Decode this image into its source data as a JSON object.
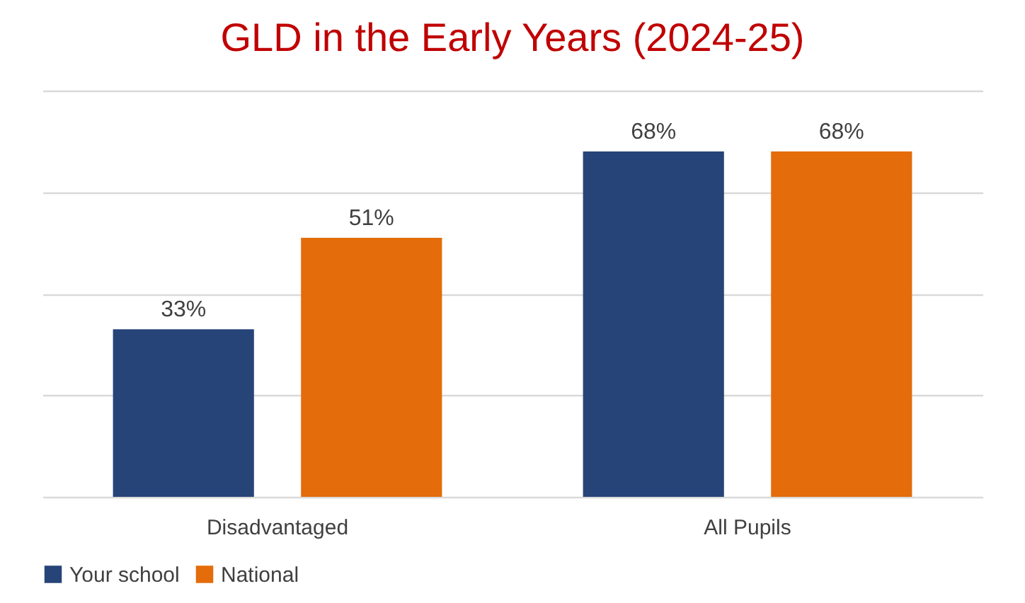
{
  "chart_data": {
    "type": "bar",
    "title": "GLD in the Early Years (2024-25)",
    "categories": [
      "Disadvantaged",
      "All Pupils"
    ],
    "series": [
      {
        "name": "Your school",
        "color": "#264478",
        "values": [
          33,
          68
        ],
        "value_labels": [
          "33%",
          "68%"
        ]
      },
      {
        "name": "National",
        "color": "#e46c0a",
        "values": [
          51,
          68
        ],
        "value_labels": [
          "51%",
          "68%"
        ]
      }
    ],
    "ylim": [
      0,
      80
    ],
    "yticks": [
      {
        "value": 0,
        "label": null
      },
      {
        "value": 20,
        "label": null
      },
      {
        "value": 40,
        "label": null
      },
      {
        "value": 60,
        "label": null
      },
      {
        "value": 80,
        "label": null
      }
    ],
    "tick_labels": "x",
    "grid": "y",
    "legend": "bottom"
  }
}
